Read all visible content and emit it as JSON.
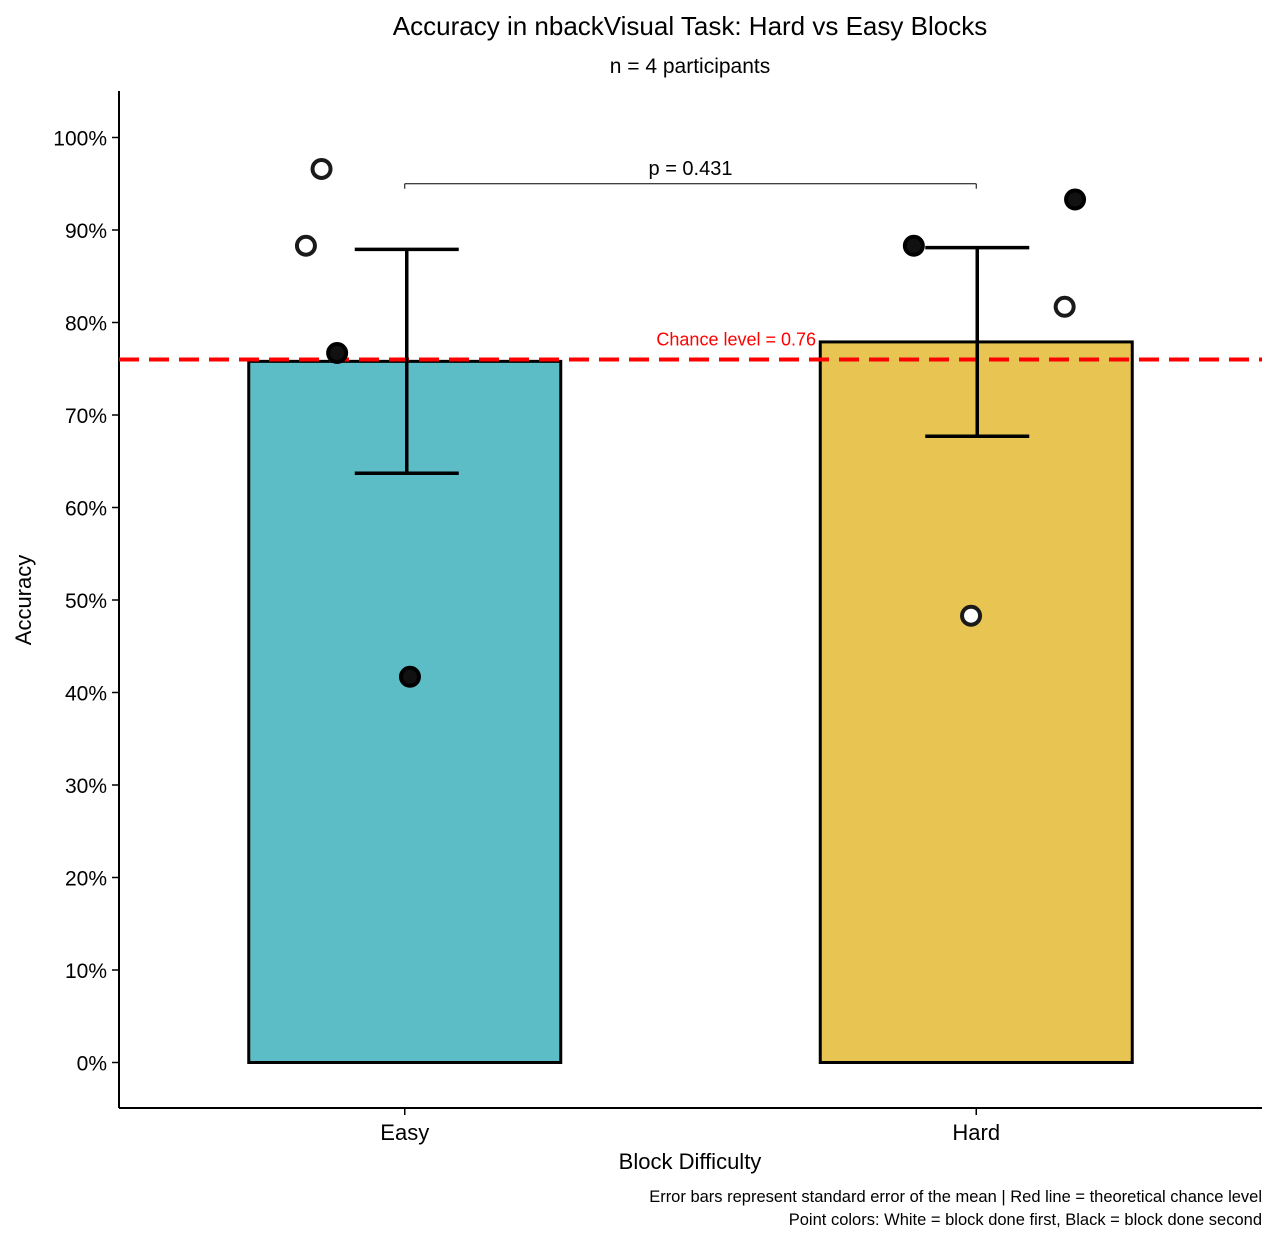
{
  "chart_data": {
    "type": "bar",
    "title": "Accuracy in nbackVisual Task: Hard vs Easy Blocks",
    "subtitle": "n = 4 participants",
    "xlabel": "Block Difficulty",
    "ylabel": "Accuracy",
    "ylim": [
      -0.05,
      1.05
    ],
    "y_ticks": [
      0,
      0.1,
      0.2,
      0.3,
      0.4,
      0.5,
      0.6,
      0.7,
      0.8,
      0.9,
      1.0
    ],
    "y_tick_labels": [
      "0%",
      "10%",
      "20%",
      "30%",
      "40%",
      "50%",
      "60%",
      "70%",
      "80%",
      "90%",
      "100%"
    ],
    "categories": [
      "Easy",
      "Hard"
    ],
    "values": [
      0.758,
      0.779
    ],
    "error_low": [
      0.637,
      0.677
    ],
    "error_high": [
      0.879,
      0.881
    ],
    "colors": {
      "Easy": "#5DBDC7",
      "Hard": "#E8C552",
      "chance_line": "#FF0000",
      "point_first": "#FFFFFF",
      "point_second": "#111111"
    },
    "chance_level": {
      "value": 0.76,
      "label": "Chance level = 0.76"
    },
    "comparison": {
      "label": "p = 0.431",
      "y": 0.95
    },
    "points": [
      {
        "category": "Easy",
        "x_offset": -0.16,
        "value": 0.966,
        "order": "first"
      },
      {
        "category": "Easy",
        "x_offset": -0.19,
        "value": 0.883,
        "order": "first"
      },
      {
        "category": "Easy",
        "x_offset": -0.13,
        "value": 0.767,
        "order": "second"
      },
      {
        "category": "Easy",
        "x_offset": 0.01,
        "value": 0.417,
        "order": "second"
      },
      {
        "category": "Hard",
        "x_offset": -0.12,
        "value": 0.883,
        "order": "second"
      },
      {
        "category": "Hard",
        "x_offset": 0.19,
        "value": 0.933,
        "order": "second"
      },
      {
        "category": "Hard",
        "x_offset": 0.17,
        "value": 0.817,
        "order": "first"
      },
      {
        "category": "Hard",
        "x_offset": -0.01,
        "value": 0.483,
        "order": "first"
      }
    ],
    "caption_lines": [
      "Error bars represent standard error of the mean | Red line = theoretical chance level",
      "Point colors: White = block done first, Black = block done second"
    ]
  }
}
